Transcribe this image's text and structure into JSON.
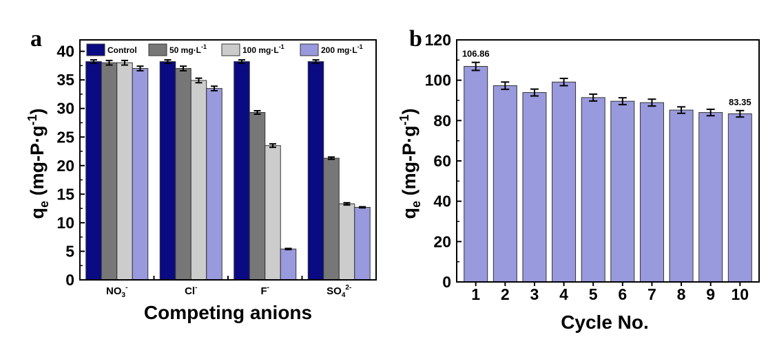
{
  "chart_data": [
    {
      "panel": "a",
      "type": "bar",
      "xlabel": "Competing anions",
      "ylabel": "q_e (mg-P·g^-1)",
      "ylim": [
        0,
        42
      ],
      "yticks": [
        "0",
        "5",
        "10",
        "15",
        "20",
        "25",
        "30",
        "35",
        "40"
      ],
      "categories": [
        {
          "base": "NO",
          "sub": "3",
          "sup": "-"
        },
        {
          "base": "Cl",
          "sub": "",
          "sup": "-"
        },
        {
          "base": "F",
          "sub": "",
          "sup": "-"
        },
        {
          "base": "SO",
          "sub": "4",
          "sup": "2-"
        }
      ],
      "series": [
        {
          "name": "Control",
          "color": "#0a0a82",
          "values": [
            38.2,
            38.2,
            38.2,
            38.2
          ],
          "errors": [
            0.3,
            0.3,
            0.3,
            0.3
          ]
        },
        {
          "name": "50 mg·L^-1",
          "color": "#777777",
          "values": [
            38.0,
            37.0,
            29.3,
            21.3
          ],
          "errors": [
            0.4,
            0.4,
            0.3,
            0.2
          ]
        },
        {
          "name": "100 mg·L^-1",
          "color": "#cccccc",
          "values": [
            38.0,
            34.9,
            23.5,
            13.3
          ],
          "errors": [
            0.4,
            0.4,
            0.3,
            0.2
          ]
        },
        {
          "name": "200 mg·L^-1",
          "color": "#9999dd",
          "values": [
            37.0,
            33.5,
            5.4,
            12.7
          ],
          "errors": [
            0.4,
            0.4,
            0.1,
            0.1
          ]
        }
      ],
      "legend_placement": "top",
      "grid": false
    },
    {
      "panel": "b",
      "type": "bar",
      "xlabel": "Cycle No.",
      "ylabel": "q_e (mg-P·g^-1)",
      "ylim": [
        0,
        120
      ],
      "yticks": [
        "0",
        "20",
        "40",
        "60",
        "80",
        "100",
        "120"
      ],
      "categories": [
        "1",
        "2",
        "3",
        "4",
        "5",
        "6",
        "7",
        "8",
        "9",
        "10"
      ],
      "color": "#9999dd",
      "values": [
        106.86,
        97.3,
        93.9,
        99.1,
        91.4,
        89.6,
        88.9,
        85.2,
        84.0,
        83.35
      ],
      "errors": [
        2.0,
        1.8,
        1.7,
        1.8,
        1.7,
        1.7,
        1.7,
        1.6,
        1.6,
        1.6
      ],
      "data_labels": [
        {
          "index": 0,
          "text": "106.86"
        },
        {
          "index": 9,
          "text": "83.35"
        }
      ],
      "grid": false
    }
  ],
  "panel_labels": {
    "a": "a",
    "b": "b"
  },
  "axis_text": {
    "ylabel_main": "q",
    "ylabel_sub": "e",
    "ylabel_rest": " (mg-P·g",
    "ylabel_sup": "-1",
    "ylabel_close": ")"
  }
}
